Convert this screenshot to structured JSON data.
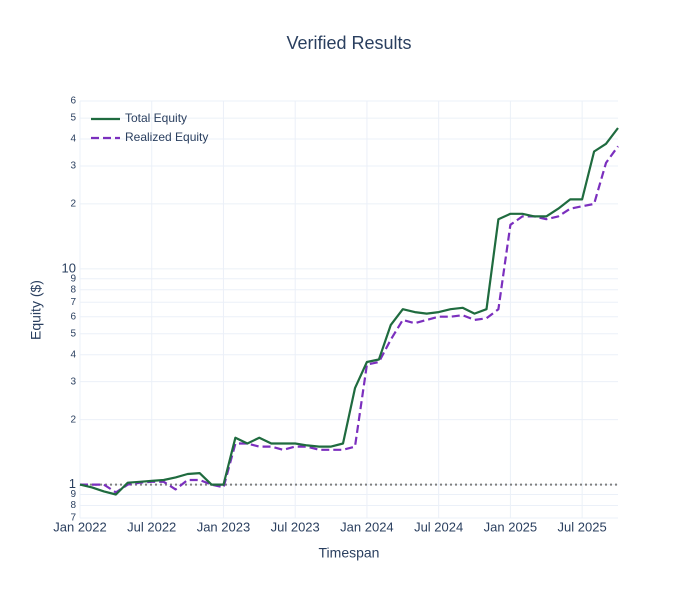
{
  "chart_data": {
    "type": "line",
    "title": "Verified Results",
    "xlabel": "Timespan",
    "ylabel": "Equity ($)",
    "log_y": true,
    "grid": true,
    "legend": "top-left",
    "x": [
      "2022-01",
      "2022-02",
      "2022-03",
      "2022-04",
      "2022-05",
      "2022-06",
      "2022-07",
      "2022-08",
      "2022-09",
      "2022-10",
      "2022-11",
      "2022-12",
      "2023-01",
      "2023-02",
      "2023-03",
      "2023-04",
      "2023-05",
      "2023-06",
      "2023-07",
      "2023-08",
      "2023-09",
      "2023-10",
      "2023-11",
      "2023-12",
      "2024-01",
      "2024-02",
      "2024-03",
      "2024-04",
      "2024-05",
      "2024-06",
      "2024-07",
      "2024-08",
      "2024-09",
      "2024-10",
      "2024-11",
      "2024-12",
      "2025-01",
      "2025-02",
      "2025-03",
      "2025-04",
      "2025-05",
      "2025-06",
      "2025-07",
      "2025-08",
      "2025-09",
      "2025-10"
    ],
    "series": [
      {
        "name": "Total Equity",
        "color": "#1f6b3f",
        "dash": "solid",
        "values": [
          1.0,
          0.97,
          0.93,
          0.9,
          1.02,
          1.03,
          1.04,
          1.05,
          1.08,
          1.12,
          1.13,
          1.0,
          1.0,
          1.65,
          1.55,
          1.65,
          1.55,
          1.55,
          1.55,
          1.52,
          1.5,
          1.5,
          1.55,
          2.8,
          3.7,
          3.8,
          5.5,
          6.5,
          6.3,
          6.2,
          6.3,
          6.5,
          6.6,
          6.2,
          6.5,
          17,
          18,
          18,
          17.5,
          17.5,
          19,
          21,
          21,
          35,
          38,
          45
        ]
      },
      {
        "name": "Realized Equity",
        "color": "#7b2fbe",
        "dash": "dashed",
        "values": [
          1.0,
          1.0,
          1.0,
          0.92,
          1.0,
          1.02,
          1.03,
          1.03,
          0.95,
          1.05,
          1.05,
          1.0,
          0.97,
          1.55,
          1.55,
          1.5,
          1.5,
          1.45,
          1.5,
          1.5,
          1.45,
          1.45,
          1.45,
          1.5,
          3.6,
          3.7,
          4.7,
          5.8,
          5.6,
          5.8,
          6.0,
          6.0,
          6.1,
          5.8,
          5.9,
          6.5,
          16,
          17.5,
          17.5,
          17,
          17.5,
          19,
          19.5,
          20,
          31,
          37
        ]
      }
    ],
    "hline": {
      "value": 1,
      "color": "#808080"
    },
    "xlim": [
      "2022-01",
      "2025-10"
    ],
    "xticks": [
      {
        "value": "2022-01",
        "label": "Jan 2022"
      },
      {
        "value": "2022-07",
        "label": "Jul 2022"
      },
      {
        "value": "2023-01",
        "label": "Jan 2023"
      },
      {
        "value": "2023-07",
        "label": "Jul 2023"
      },
      {
        "value": "2024-01",
        "label": "Jan 2024"
      },
      {
        "value": "2024-07",
        "label": "Jul 2024"
      },
      {
        "value": "2025-01",
        "label": "Jan 2025"
      },
      {
        "value": "2025-07",
        "label": "Jul 2025"
      }
    ],
    "ylim": [
      0.7,
      60
    ],
    "yticks": [
      {
        "value": 0.7,
        "label": "7"
      },
      {
        "value": 0.8,
        "label": "8"
      },
      {
        "value": 0.9,
        "label": "9"
      },
      1,
      2,
      3,
      4,
      5,
      6,
      7,
      8,
      9,
      10,
      {
        "value": 20,
        "label": "2"
      },
      {
        "value": 30,
        "label": "3"
      },
      {
        "value": 40,
        "label": "4"
      },
      {
        "value": 50,
        "label": "5"
      },
      {
        "value": 60,
        "label": "6"
      }
    ]
  }
}
